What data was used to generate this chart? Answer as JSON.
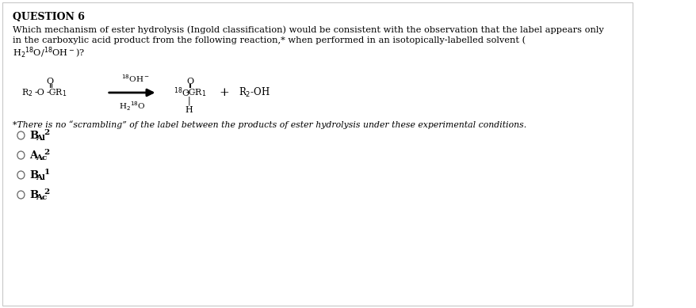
{
  "title": "QUESTION 6",
  "background_color": "#ffffff",
  "border_color": "#c8c8c8",
  "line1": "Which mechanism of ester hydrolysis (Ingold classification) would be consistent with the observation that the label appears only",
  "line2": "in the carboxylic acid product from the following reaction,* when performed in an isotopically-labelled solvent (",
  "line3": "H₂¹⁸O/¹⁸OH⁻)?",
  "footnote": "*There is no “scrambling” of the label between the products of ester hydrolysis under these experimental conditions.",
  "opt1": "B",
  "opt1_sub": "Al",
  "opt1_sup": "2",
  "opt2": "A",
  "opt2_sub": "Ac",
  "opt2_sup": "2",
  "opt3": "B",
  "opt3_sub": "Al",
  "opt3_sup": "1",
  "opt4": "B",
  "opt4_sub": "Ac",
  "opt4_sup": "2",
  "text_color": "#000000",
  "font_size_title": 9,
  "font_size_body": 8.2,
  "font_size_chem": 8.0,
  "font_size_footnote": 7.8,
  "font_size_option": 9.5,
  "font_size_sub": 7.5
}
